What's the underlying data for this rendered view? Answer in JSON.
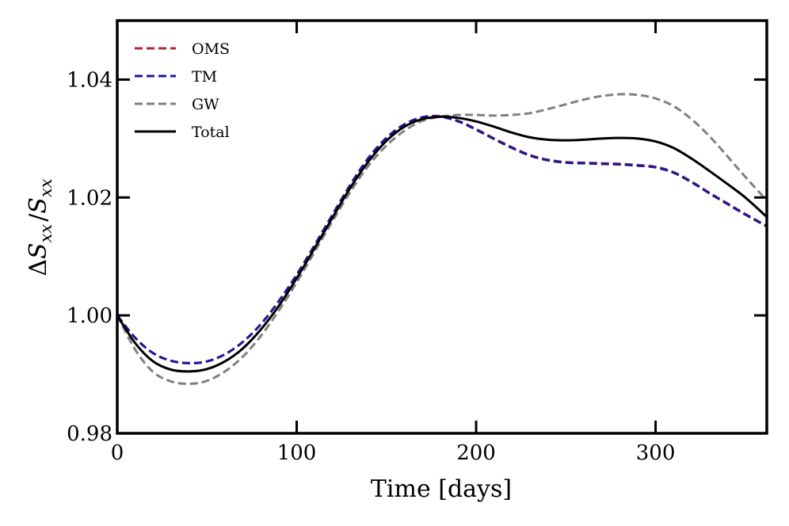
{
  "chart_data": {
    "type": "line",
    "title": "",
    "xlabel": "Time [days]",
    "ylabel": "ΔS_xx / S_xx",
    "ylabel_parts": {
      "delta": "Δ",
      "s": "S",
      "sub": "xx",
      "slash": "/"
    },
    "xlim": [
      0,
      362
    ],
    "ylim": [
      0.98,
      1.05
    ],
    "x_ticks": [
      0,
      100,
      200,
      300
    ],
    "x_tick_labels": [
      "0",
      "100",
      "200",
      "300"
    ],
    "y_ticks": [
      0.98,
      1.0,
      1.02,
      1.04
    ],
    "y_tick_labels": [
      "0.98",
      "1.00",
      "1.02",
      "1.04"
    ],
    "grid": false,
    "legend_position": "top-left",
    "series": [
      {
        "name": "OMS",
        "color": "#b02a30",
        "style": "dashed",
        "x": [
          0,
          10,
          20,
          30,
          40,
          50,
          60,
          70,
          80,
          90,
          100,
          110,
          120,
          130,
          140,
          150,
          160,
          170,
          180,
          190,
          200,
          210,
          220,
          230,
          240,
          250,
          260,
          270,
          280,
          290,
          300,
          310,
          320,
          330,
          340,
          350,
          362
        ],
        "values": [
          1.0,
          0.9962,
          0.9936,
          0.9923,
          0.9919,
          0.9922,
          0.9934,
          0.9955,
          0.9985,
          1.0024,
          1.0069,
          1.0119,
          1.0171,
          1.0222,
          1.0267,
          1.0301,
          1.0324,
          1.0336,
          1.0338,
          1.033,
          1.0316,
          1.03,
          1.0285,
          1.0272,
          1.0264,
          1.026,
          1.0259,
          1.0258,
          1.0257,
          1.0255,
          1.0252,
          1.0243,
          1.0227,
          1.0208,
          1.019,
          1.0172,
          1.0152
        ]
      },
      {
        "name": "TM",
        "color": "#1a1a9c",
        "style": "dashed",
        "x": [
          0,
          10,
          20,
          30,
          40,
          50,
          60,
          70,
          80,
          90,
          100,
          110,
          120,
          130,
          140,
          150,
          160,
          170,
          180,
          190,
          200,
          210,
          220,
          230,
          240,
          250,
          260,
          270,
          280,
          290,
          300,
          310,
          320,
          330,
          340,
          350,
          362
        ],
        "values": [
          1.0,
          0.9962,
          0.9936,
          0.9923,
          0.9919,
          0.9922,
          0.9934,
          0.9955,
          0.9985,
          1.0024,
          1.0069,
          1.0119,
          1.0171,
          1.0222,
          1.0267,
          1.0301,
          1.0324,
          1.0336,
          1.0337,
          1.0329,
          1.0315,
          1.0299,
          1.0284,
          1.0271,
          1.0263,
          1.0259,
          1.0258,
          1.0257,
          1.0256,
          1.0254,
          1.0251,
          1.0242,
          1.0226,
          1.0207,
          1.0189,
          1.0171,
          1.0151
        ]
      },
      {
        "name": "GW",
        "color": "#808080",
        "style": "dashed",
        "x": [
          0,
          10,
          20,
          30,
          40,
          50,
          60,
          70,
          80,
          90,
          100,
          110,
          120,
          130,
          140,
          150,
          160,
          170,
          180,
          190,
          200,
          210,
          220,
          230,
          240,
          250,
          260,
          270,
          280,
          290,
          300,
          310,
          320,
          330,
          340,
          350,
          362
        ],
        "values": [
          1.0,
          0.9942,
          0.9904,
          0.9888,
          0.9884,
          0.9889,
          0.9905,
          0.993,
          0.9965,
          1.0008,
          1.0056,
          1.0108,
          1.016,
          1.021,
          1.0254,
          1.0288,
          1.0313,
          1.033,
          1.0337,
          1.034,
          1.034,
          1.0339,
          1.034,
          1.0343,
          1.035,
          1.0358,
          1.0366,
          1.0372,
          1.0375,
          1.0374,
          1.0368,
          1.0355,
          1.0333,
          1.0304,
          1.027,
          1.0235,
          1.0195
        ]
      },
      {
        "name": "Total",
        "color": "#000000",
        "style": "solid",
        "x": [
          0,
          10,
          20,
          30,
          40,
          50,
          60,
          70,
          80,
          90,
          100,
          110,
          120,
          130,
          140,
          150,
          160,
          170,
          180,
          190,
          200,
          210,
          220,
          230,
          240,
          250,
          260,
          270,
          280,
          290,
          300,
          310,
          320,
          330,
          340,
          350,
          362
        ],
        "values": [
          1.0,
          0.9953,
          0.9922,
          0.9908,
          0.9905,
          0.9909,
          0.9922,
          0.9944,
          0.9976,
          1.0016,
          1.0063,
          1.0114,
          1.0166,
          1.0217,
          1.0261,
          1.0296,
          1.032,
          1.0333,
          1.0337,
          1.0335,
          1.0329,
          1.032,
          1.031,
          1.0302,
          1.0298,
          1.0297,
          1.0298,
          1.03,
          1.0301,
          1.03,
          1.0295,
          1.0284,
          1.0266,
          1.0245,
          1.0223,
          1.02,
          1.0167
        ]
      }
    ]
  }
}
